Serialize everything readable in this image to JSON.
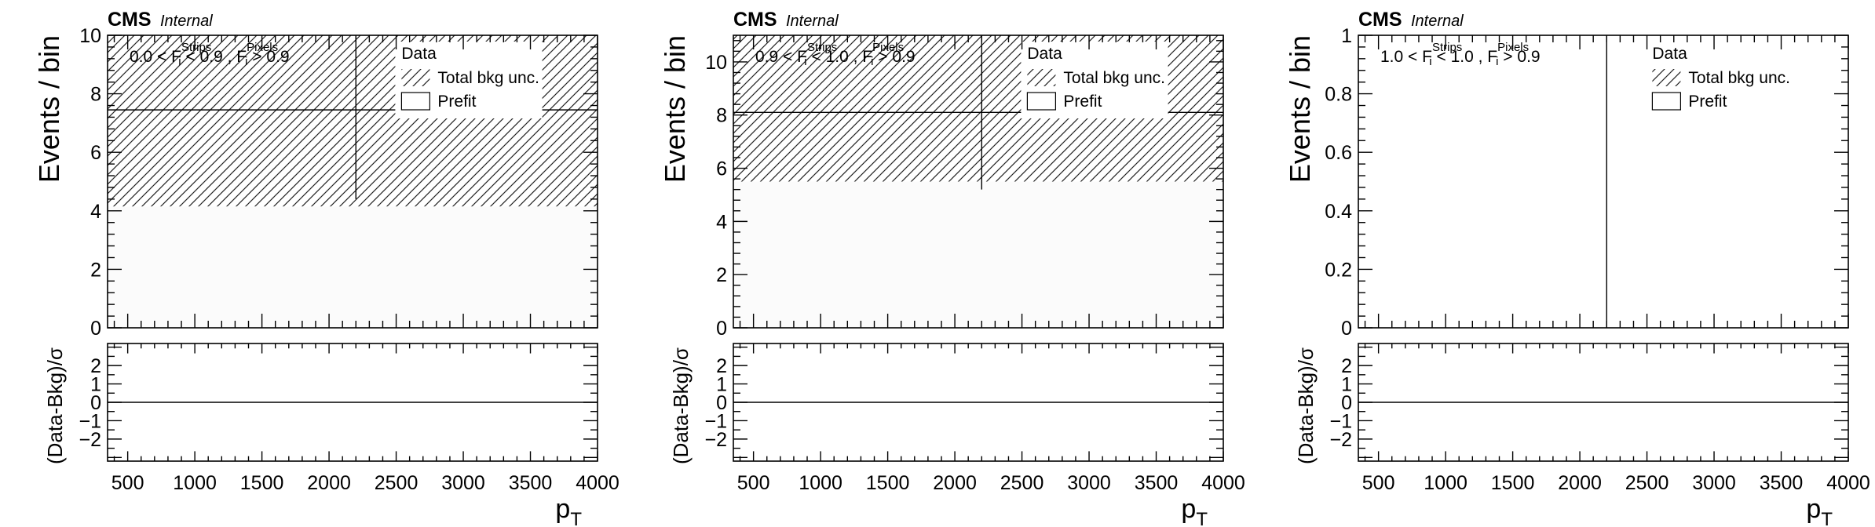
{
  "chart_data": [
    {
      "type": "bar",
      "experiment": "CMS",
      "label": "Internal",
      "region": {
        "pre": "0.0 < F",
        "sup1": "Strips",
        "sub1": "i",
        "mid": " < 0.9 , F",
        "sup2": "Pixels",
        "sub2": "i",
        "post": " > 0.9"
      },
      "ylabel": "Events / bin",
      "ylim": [
        0,
        10
      ],
      "yticks": [
        "0",
        "2",
        "4",
        "6",
        "8",
        "10"
      ],
      "xlabel_main": "p",
      "xlabel_sub": "T",
      "xlim": [
        350,
        4000
      ],
      "xticks": [
        "500",
        "1000",
        "1500",
        "2000",
        "2500",
        "3000",
        "3500",
        "4000"
      ],
      "prefit_value": 7.45,
      "band": [
        4.15,
        10.0
      ],
      "data_marker_x": 2200,
      "data_marker_ymin": 4.4,
      "legend": [
        "Data",
        "Total bkg unc.",
        "Prefit"
      ],
      "ratio_ylabel": "(Data-Bkg)/σ",
      "ratio_ylim": [
        -3.2,
        3.2
      ],
      "ratio_yticks": [
        "2",
        "1",
        "0",
        "−1",
        "−2"
      ]
    },
    {
      "type": "bar",
      "experiment": "CMS",
      "label": "Internal",
      "region": {
        "pre": "0.9 < F",
        "sup1": "Strips",
        "sub1": "i",
        "mid": " < 1.0 , F",
        "sup2": "Pixels",
        "sub2": "i",
        "post": " > 0.9"
      },
      "ylabel": "Events / bin",
      "ylim": [
        0,
        11
      ],
      "yticks": [
        "0",
        "2",
        "4",
        "6",
        "8",
        "10"
      ],
      "xlabel_main": "p",
      "xlabel_sub": "T",
      "xlim": [
        350,
        4000
      ],
      "xticks": [
        "500",
        "1000",
        "1500",
        "2000",
        "2500",
        "3000",
        "3500",
        "4000"
      ],
      "prefit_value": 8.1,
      "band": [
        5.5,
        11.0
      ],
      "data_marker_x": 2200,
      "data_marker_ymin": 5.2,
      "legend": [
        "Data",
        "Total bkg unc.",
        "Prefit"
      ],
      "ratio_ylabel": "(Data-Bkg)/σ",
      "ratio_ylim": [
        -3.2,
        3.2
      ],
      "ratio_yticks": [
        "2",
        "1",
        "0",
        "−1",
        "−2"
      ]
    },
    {
      "type": "bar",
      "experiment": "CMS",
      "label": "Internal",
      "region": {
        "pre": "1.0 < F",
        "sup1": "Strips",
        "sub1": "i",
        "mid": " < 1.0 , F",
        "sup2": "Pixels",
        "sub2": "i",
        "post": " > 0.9"
      },
      "ylabel": "Events / bin",
      "ylim": [
        0,
        1
      ],
      "yticks": [
        "0",
        "0.2",
        "0.4",
        "0.6",
        "0.8",
        "1"
      ],
      "xlabel_main": "p",
      "xlabel_sub": "T",
      "xlim": [
        350,
        4000
      ],
      "xticks": [
        "500",
        "1000",
        "1500",
        "2000",
        "2500",
        "3000",
        "3500",
        "4000"
      ],
      "prefit_value": null,
      "band": null,
      "data_marker_x": 2200,
      "data_marker_ymin": 0,
      "legend": [
        "Data",
        "Total bkg unc.",
        "Prefit"
      ],
      "ratio_ylabel": "(Data-Bkg)/σ",
      "ratio_ylim": [
        -3.2,
        3.2
      ],
      "ratio_yticks": [
        "2",
        "1",
        "0",
        "−1",
        "−2"
      ]
    }
  ]
}
